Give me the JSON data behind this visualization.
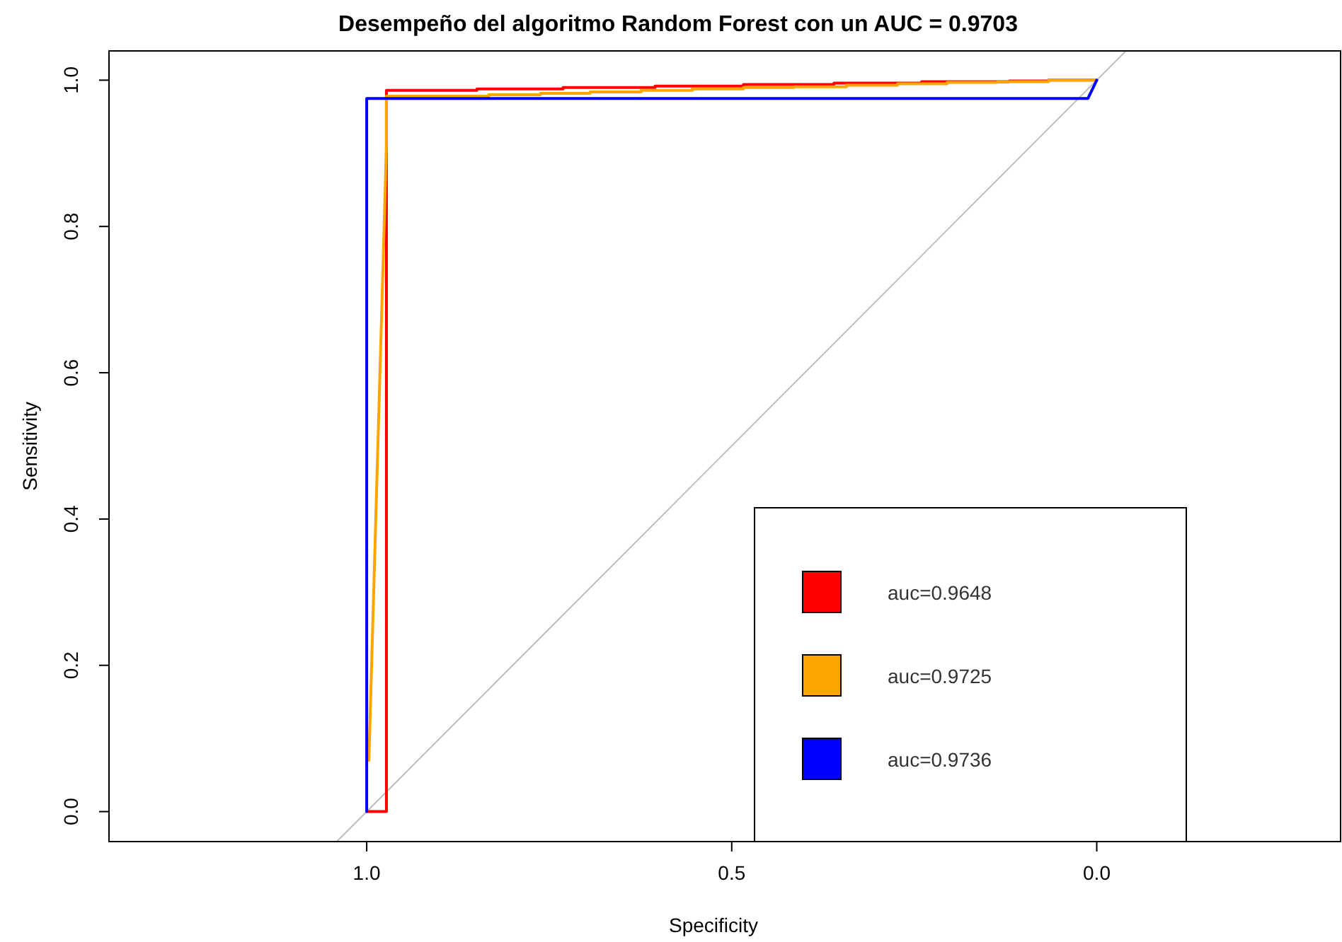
{
  "chart_data": {
    "type": "line",
    "title": "Desempeño del algoritmo Random Forest con un AUC = 0.9703",
    "xlabel": "Specificity",
    "ylabel": "Sensitivity",
    "xlim": [
      1.353,
      -0.334
    ],
    "ylim": [
      -0.041,
      1.04
    ],
    "xticks": [
      {
        "value": 1,
        "label": "1.0"
      },
      {
        "value": 0.5,
        "label": "0.5"
      },
      {
        "value": 0,
        "label": "0.0"
      }
    ],
    "yticks": [
      {
        "value": 0,
        "label": "0.0"
      },
      {
        "value": 0.2,
        "label": "0.2"
      },
      {
        "value": 0.4,
        "label": "0.4"
      },
      {
        "value": 0.6,
        "label": "0.6"
      },
      {
        "value": 0.8,
        "label": "0.8"
      },
      {
        "value": 1,
        "label": "1.0"
      }
    ],
    "grid": false,
    "legend": "bottom right",
    "marker": "none",
    "line_style": "solid",
    "series": [
      {
        "color": "#bebebe",
        "x": [
          1.04,
          -0.04
        ],
        "values": [
          -0.04,
          1.04
        ]
      },
      {
        "name": "auc=0.9648",
        "color": "#ff0000",
        "x": [
          1,
          0.973,
          0.973,
          0.849,
          0.849,
          0.731,
          0.731,
          0.605,
          0.605,
          0.484,
          0.484,
          0.36,
          0.36,
          0.24,
          0.24,
          0.12,
          0.12,
          0.066,
          0.066,
          0
        ],
        "values": [
          0,
          0,
          0.986,
          0.986,
          0.988,
          0.988,
          0.99,
          0.99,
          0.992,
          0.992,
          0.994,
          0.994,
          0.996,
          0.996,
          0.998,
          0.998,
          0.999,
          0.999,
          1,
          1
        ]
      },
      {
        "name": "auc=0.9725",
        "color": "#ffa500",
        "x": [
          0.997,
          0.973,
          0.973,
          0.833,
          0.833,
          0.762,
          0.762,
          0.694,
          0.694,
          0.624,
          0.624,
          0.554,
          0.554,
          0.484,
          0.484,
          0.415,
          0.415,
          0.343,
          0.343,
          0.273,
          0.273,
          0.205,
          0.205,
          0.136,
          0.136,
          0.066,
          0.066,
          0
        ],
        "values": [
          0.07,
          0.91,
          0.978,
          0.978,
          0.98,
          0.98,
          0.982,
          0.982,
          0.984,
          0.984,
          0.986,
          0.986,
          0.988,
          0.988,
          0.99,
          0.99,
          0.991,
          0.991,
          0.993,
          0.993,
          0.995,
          0.995,
          0.997,
          0.997,
          0.998,
          0.998,
          1,
          1
        ]
      },
      {
        "name": "auc=0.9736",
        "color": "#0000ff",
        "x": [
          1,
          1,
          0.012,
          0
        ],
        "values": [
          0,
          0.975,
          0.975,
          1
        ]
      }
    ]
  }
}
